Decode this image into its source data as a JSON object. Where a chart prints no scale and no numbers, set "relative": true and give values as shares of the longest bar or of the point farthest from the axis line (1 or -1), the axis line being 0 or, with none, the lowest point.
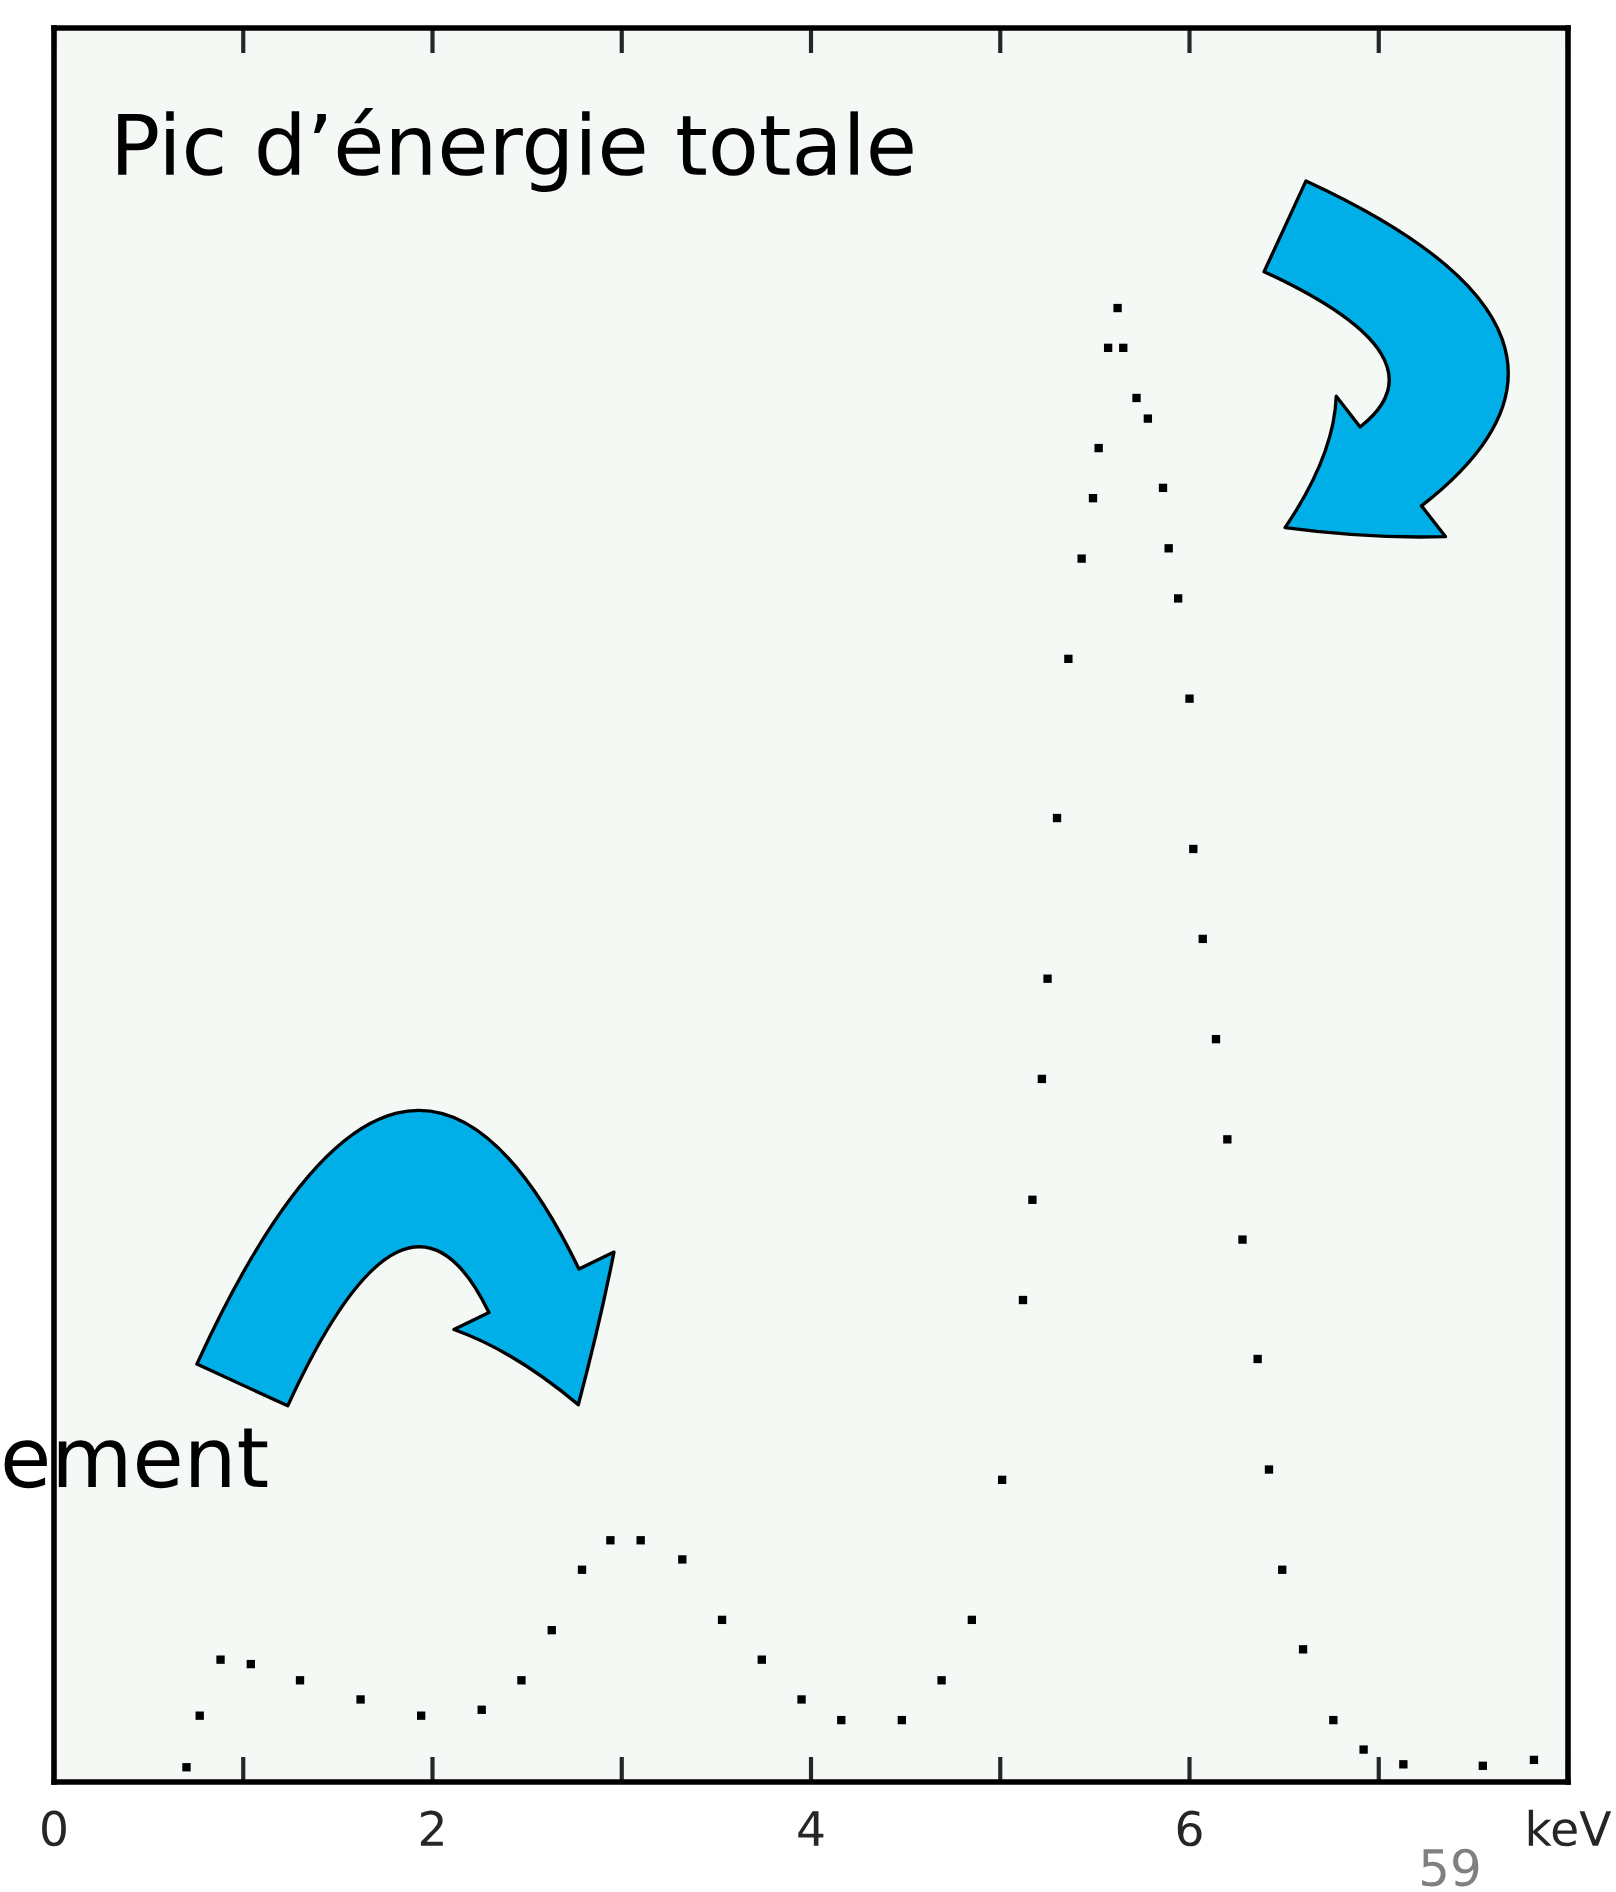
{
  "chart_data": {
    "type": "scatter",
    "relative": true,
    "xlim": [
      0,
      8
    ],
    "xticks": [
      0,
      {
        "value": 1,
        "label": null
      },
      2,
      {
        "value": 3,
        "label": null
      },
      4,
      {
        "value": 5,
        "label": null
      },
      6,
      {
        "value": 7,
        "label": null
      },
      {
        "value": 8,
        "label": "keV"
      }
    ],
    "tick_labels": "x",
    "marker": "square",
    "grid": false,
    "legend": false,
    "annotations": [
      "Pic d’énergie totale",
      "ement",
      "59"
    ],
    "series": [
      {
        "color": "#000000",
        "x": [
          0.7,
          0.77,
          0.88,
          1.04,
          1.3,
          1.62,
          1.94,
          2.26,
          2.47,
          2.63,
          2.79,
          2.94,
          3.1,
          3.32,
          3.53,
          3.74,
          3.95,
          4.16,
          4.48,
          4.69,
          4.85,
          5.01,
          5.12,
          5.17,
          5.22,
          5.25,
          5.3,
          5.36,
          5.43,
          5.49,
          5.52,
          5.57,
          5.62,
          5.65,
          5.72,
          5.78,
          5.86,
          5.89,
          5.94,
          6.0,
          6.02,
          6.07,
          6.14,
          6.2,
          6.28,
          6.36,
          6.42,
          6.49,
          6.6,
          6.76,
          6.92,
          7.13,
          7.55,
          7.82
        ],
        "values": [
          0.01,
          0.045,
          0.083,
          0.08,
          0.069,
          0.056,
          0.045,
          0.049,
          0.069,
          0.103,
          0.144,
          0.164,
          0.164,
          0.151,
          0.11,
          0.083,
          0.056,
          0.042,
          0.042,
          0.069,
          0.11,
          0.205,
          0.327,
          0.395,
          0.477,
          0.545,
          0.654,
          0.762,
          0.83,
          0.871,
          0.905,
          0.973,
          1.0,
          0.973,
          0.939,
          0.925,
          0.878,
          0.837,
          0.803,
          0.735,
          0.633,
          0.572,
          0.504,
          0.436,
          0.368,
          0.287,
          0.212,
          0.144,
          0.09,
          0.042,
          0.022,
          0.012,
          0.011,
          0.015
        ]
      }
    ]
  }
}
